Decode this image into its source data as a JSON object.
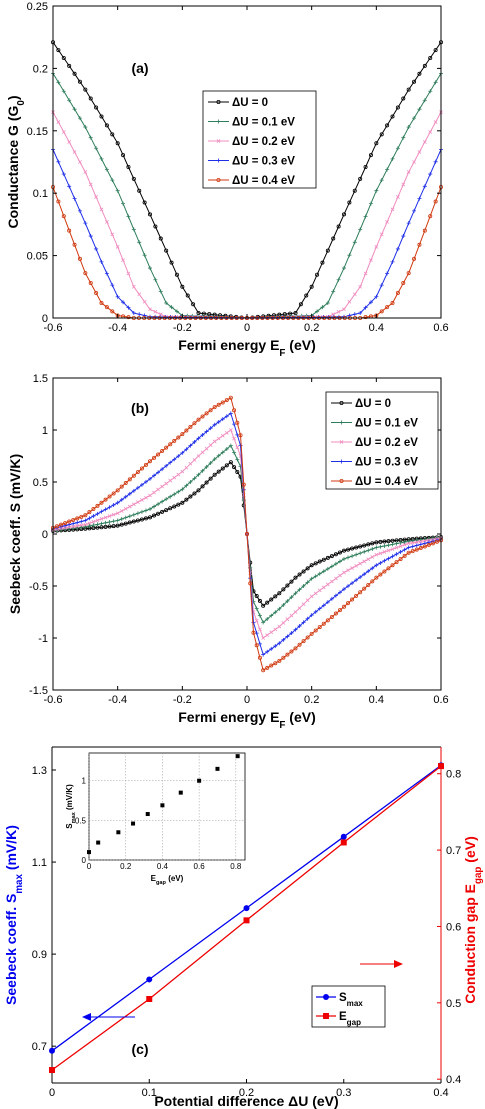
{
  "colors": {
    "dU0": "#000000",
    "dU1": "#2e7d5b",
    "dU2": "#f08cbf",
    "dU3": "#1f2fe8",
    "dU4": "#d03a10",
    "smax": "#0000ee",
    "egap": "#ee0000"
  },
  "chart_data": [
    {
      "type": "line",
      "panel_label": "(a)",
      "xlabel": "Fermi energy E",
      "xlabel_sub": "F",
      "xlabel_unit": " (eV)",
      "ylabel": "Conductance G (G",
      "ylabel_sub": "0",
      "ylabel_end": ")",
      "xlim": [
        -0.6,
        0.6
      ],
      "ylim": [
        0,
        0.25
      ],
      "x_ticks": [
        "-0.6",
        "-0.4",
        "-0.2",
        "0",
        "0.2",
        "0.4",
        "0.6"
      ],
      "y_ticks": [
        "0",
        "0.05",
        "0.1",
        "0.15",
        "0.2",
        "0.25"
      ],
      "legend": [
        "ΔU = 0",
        "ΔU = 0.1 eV",
        "ΔU = 0.2 eV",
        "ΔU = 0.3 eV",
        "ΔU = 0.4 eV"
      ],
      "legend_position": "center-right",
      "marker": [
        "o",
        "+",
        "x",
        "+",
        "o"
      ],
      "series": [
        {
          "name": "ΔU = 0",
          "x": [
            -0.6,
            -0.5,
            -0.4,
            -0.3,
            -0.2,
            -0.15,
            0,
            0.15,
            0.2,
            0.3,
            0.4,
            0.5,
            0.6
          ],
          "values": [
            0.221,
            0.183,
            0.14,
            0.083,
            0.025,
            0.004,
            0.0,
            0.004,
            0.025,
            0.083,
            0.14,
            0.183,
            0.221
          ]
        },
        {
          "name": "ΔU = 0.1 eV",
          "x": [
            -0.6,
            -0.5,
            -0.4,
            -0.3,
            -0.25,
            -0.2,
            0,
            0.2,
            0.25,
            0.3,
            0.4,
            0.5,
            0.6
          ],
          "values": [
            0.196,
            0.153,
            0.102,
            0.04,
            0.012,
            0.002,
            0.0,
            0.002,
            0.012,
            0.04,
            0.102,
            0.153,
            0.196
          ]
        },
        {
          "name": "ΔU = 0.2 eV",
          "x": [
            -0.6,
            -0.5,
            -0.4,
            -0.35,
            -0.3,
            -0.25,
            0,
            0.25,
            0.3,
            0.35,
            0.4,
            0.5,
            0.6
          ],
          "values": [
            0.165,
            0.117,
            0.057,
            0.025,
            0.007,
            0.001,
            0.0,
            0.001,
            0.007,
            0.025,
            0.057,
            0.117,
            0.165
          ]
        },
        {
          "name": "ΔU = 0.3 eV",
          "x": [
            -0.6,
            -0.5,
            -0.45,
            -0.4,
            -0.35,
            -0.3,
            0,
            0.3,
            0.35,
            0.4,
            0.45,
            0.5,
            0.6
          ],
          "values": [
            0.135,
            0.076,
            0.045,
            0.017,
            0.004,
            0.001,
            0.0,
            0.001,
            0.004,
            0.017,
            0.045,
            0.076,
            0.135
          ]
        },
        {
          "name": "ΔU = 0.4 eV",
          "x": [
            -0.6,
            -0.55,
            -0.5,
            -0.45,
            -0.4,
            -0.35,
            0,
            0.35,
            0.4,
            0.45,
            0.5,
            0.55,
            0.6
          ],
          "values": [
            0.105,
            0.07,
            0.036,
            0.012,
            0.002,
            0.0,
            0.0,
            0.0,
            0.002,
            0.012,
            0.036,
            0.07,
            0.105
          ]
        }
      ]
    },
    {
      "type": "line",
      "panel_label": "(b)",
      "xlabel": "Fermi energy E",
      "xlabel_sub": "F",
      "xlabel_unit": " (eV)",
      "ylabel": "Seebeck coeff. S (mV/K)",
      "xlim": [
        -0.6,
        0.6
      ],
      "ylim": [
        -1.5,
        1.5
      ],
      "x_ticks": [
        "-0.6",
        "-0.4",
        "-0.2",
        "0",
        "0.2",
        "0.4",
        "0.6"
      ],
      "y_ticks": [
        "-1.5",
        "-1",
        "-0.5",
        "0",
        "0.5",
        "1",
        "1.5"
      ],
      "legend": [
        "ΔU = 0",
        "ΔU = 0.1 eV",
        "ΔU = 0.2 eV",
        "ΔU = 0.3 eV",
        "ΔU = 0.4 eV"
      ],
      "legend_position": "top-right",
      "marker": [
        "o",
        "+",
        "x",
        "+",
        "o"
      ],
      "series": [
        {
          "name": "ΔU = 0",
          "x": [
            -0.6,
            -0.5,
            -0.4,
            -0.3,
            -0.2,
            -0.15,
            -0.1,
            -0.05,
            -0.02,
            0,
            0.02,
            0.05,
            0.1,
            0.15,
            0.2,
            0.3,
            0.4,
            0.5,
            0.6
          ],
          "values": [
            0.03,
            0.05,
            0.08,
            0.16,
            0.3,
            0.42,
            0.57,
            0.69,
            0.55,
            0.0,
            -0.55,
            -0.69,
            -0.57,
            -0.42,
            -0.3,
            -0.16,
            -0.08,
            -0.05,
            -0.03
          ]
        },
        {
          "name": "ΔU = 0.1 eV",
          "x": [
            -0.6,
            -0.5,
            -0.4,
            -0.3,
            -0.2,
            -0.15,
            -0.1,
            -0.05,
            -0.02,
            0,
            0.02,
            0.05,
            0.1,
            0.15,
            0.2,
            0.3,
            0.4,
            0.5,
            0.6
          ],
          "values": [
            0.03,
            0.07,
            0.13,
            0.24,
            0.43,
            0.57,
            0.72,
            0.85,
            0.65,
            0.0,
            -0.65,
            -0.85,
            -0.72,
            -0.57,
            -0.43,
            -0.24,
            -0.13,
            -0.07,
            -0.03
          ]
        },
        {
          "name": "ΔU = 0.2 eV",
          "x": [
            -0.6,
            -0.5,
            -0.4,
            -0.3,
            -0.2,
            -0.15,
            -0.1,
            -0.05,
            -0.02,
            0,
            0.02,
            0.05,
            0.1,
            0.15,
            0.2,
            0.3,
            0.4,
            0.5,
            0.6
          ],
          "values": [
            0.04,
            0.09,
            0.2,
            0.37,
            0.6,
            0.75,
            0.89,
            1.0,
            0.75,
            0.0,
            -0.75,
            -1.0,
            -0.89,
            -0.75,
            -0.6,
            -0.37,
            -0.2,
            -0.09,
            -0.04
          ]
        },
        {
          "name": "ΔU = 0.3 eV",
          "x": [
            -0.6,
            -0.5,
            -0.4,
            -0.3,
            -0.2,
            -0.15,
            -0.1,
            -0.05,
            -0.02,
            0,
            0.02,
            0.05,
            0.1,
            0.15,
            0.2,
            0.3,
            0.4,
            0.5,
            0.6
          ],
          "values": [
            0.05,
            0.13,
            0.3,
            0.53,
            0.78,
            0.92,
            1.05,
            1.16,
            0.85,
            0.0,
            -0.85,
            -1.16,
            -1.05,
            -0.92,
            -0.78,
            -0.53,
            -0.3,
            -0.13,
            -0.05
          ]
        },
        {
          "name": "ΔU = 0.4 eV",
          "x": [
            -0.6,
            -0.5,
            -0.4,
            -0.3,
            -0.2,
            -0.15,
            -0.1,
            -0.05,
            -0.02,
            0,
            0.02,
            0.05,
            0.1,
            0.15,
            0.2,
            0.3,
            0.4,
            0.5,
            0.6
          ],
          "values": [
            0.06,
            0.18,
            0.42,
            0.7,
            0.96,
            1.1,
            1.22,
            1.31,
            0.95,
            0.0,
            -0.95,
            -1.31,
            -1.22,
            -1.1,
            -0.96,
            -0.7,
            -0.42,
            -0.18,
            -0.06
          ]
        }
      ]
    },
    {
      "type": "line",
      "panel_label": "(c)",
      "xlabel": "Potential difference ΔU (eV)",
      "ylabel": "Seebeck coeff. S",
      "ylabel_sub": "max",
      "ylabel_unit": " (mV/K)",
      "y2label": "Conduction gap E",
      "y2label_sub": "gap",
      "y2label_unit": " (eV)",
      "xlim": [
        0,
        0.4
      ],
      "ylim": [
        0.62,
        1.35
      ],
      "y2lim": [
        0.395,
        0.835
      ],
      "x_ticks": [
        "0",
        "0.1",
        "0.2",
        "0.3",
        "0.4"
      ],
      "y_ticks": [
        "0.7",
        "0.9",
        "1.1",
        "1.3"
      ],
      "y2_ticks": [
        "0.4",
        "0.5",
        "0.6",
        "0.7",
        "0.8"
      ],
      "legend": [
        "S",
        "E"
      ],
      "legend_sub": [
        "max",
        "gap"
      ],
      "legend_position": "bottom-right",
      "series": [
        {
          "name": "S",
          "axis": "left",
          "x": [
            0,
            0.1,
            0.2,
            0.3,
            0.4
          ],
          "values": [
            0.69,
            0.845,
            1.0,
            1.155,
            1.31
          ]
        },
        {
          "name": "E",
          "axis": "right",
          "x": [
            0,
            0.1,
            0.2,
            0.3,
            0.4
          ],
          "values": [
            0.412,
            0.505,
            0.608,
            0.71,
            0.81
          ]
        }
      ],
      "inset": {
        "type": "scatter",
        "xlabel": "E",
        "xlabel_sub": "gap",
        "xlabel_unit": " (eV)",
        "ylabel": "S",
        "ylabel_sub": "max",
        "ylabel_unit": " (mV/K)",
        "xlim": [
          0,
          0.85
        ],
        "ylim": [
          0,
          1.35
        ],
        "grid": true,
        "x_ticks": [
          "0",
          "0.2",
          "0.4",
          "0.6",
          "0.8"
        ],
        "y_ticks": [
          "0",
          "0.5",
          "1"
        ],
        "x": [
          0.0,
          0.05,
          0.16,
          0.24,
          0.32,
          0.4,
          0.5,
          0.6,
          0.7,
          0.81
        ],
        "values": [
          0.1,
          0.22,
          0.35,
          0.46,
          0.58,
          0.69,
          0.85,
          1.0,
          1.15,
          1.31
        ]
      }
    }
  ]
}
